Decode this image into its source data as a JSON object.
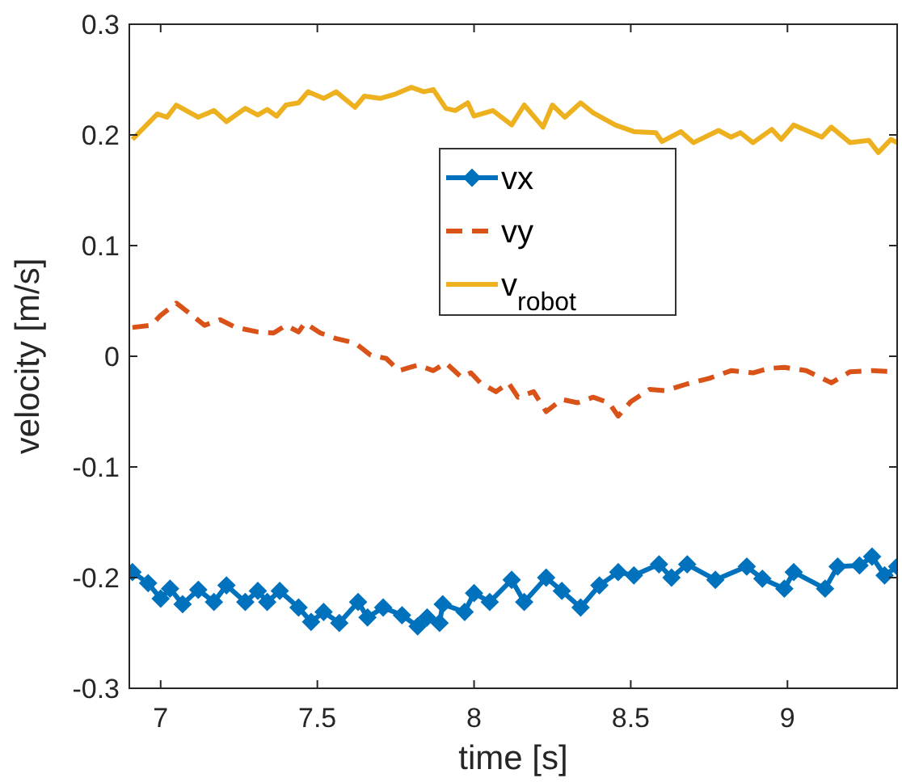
{
  "chart_data": {
    "type": "line",
    "xlabel": "time [s]",
    "ylabel": "velocity [m/s]",
    "xlim": [
      6.9,
      9.35
    ],
    "ylim": [
      -0.3,
      0.3
    ],
    "xticks": [
      7,
      7.5,
      8,
      8.5,
      9
    ],
    "yticks": [
      -0.3,
      -0.2,
      -0.1,
      0,
      0.1,
      0.2,
      0.3
    ],
    "grid": false,
    "legend": "top",
    "series": [
      {
        "name": "vx",
        "color": "#0072bd",
        "marker": "diamond",
        "line_style": "solid",
        "x": [
          6.91,
          6.96,
          7.0,
          7.03,
          7.07,
          7.12,
          7.17,
          7.21,
          7.27,
          7.31,
          7.34,
          7.38,
          7.44,
          7.48,
          7.52,
          7.57,
          7.63,
          7.66,
          7.71,
          7.77,
          7.82,
          7.85,
          7.89,
          7.9,
          7.97,
          8.0,
          8.05,
          8.12,
          8.16,
          8.23,
          8.28,
          8.34,
          8.4,
          8.46,
          8.51,
          8.59,
          8.63,
          8.68,
          8.77,
          8.87,
          8.92,
          8.99,
          9.02,
          9.12,
          9.16,
          9.23,
          9.27,
          9.31,
          9.35
        ],
        "values": [
          -0.195,
          -0.205,
          -0.219,
          -0.21,
          -0.224,
          -0.211,
          -0.222,
          -0.207,
          -0.222,
          -0.212,
          -0.222,
          -0.212,
          -0.227,
          -0.24,
          -0.231,
          -0.241,
          -0.222,
          -0.236,
          -0.227,
          -0.234,
          -0.244,
          -0.236,
          -0.241,
          -0.224,
          -0.231,
          -0.214,
          -0.222,
          -0.202,
          -0.222,
          -0.2,
          -0.212,
          -0.227,
          -0.207,
          -0.195,
          -0.198,
          -0.188,
          -0.2,
          -0.188,
          -0.202,
          -0.19,
          -0.201,
          -0.21,
          -0.195,
          -0.21,
          -0.19,
          -0.189,
          -0.181,
          -0.198,
          -0.19
        ]
      },
      {
        "name": "vy",
        "color": "#d95319",
        "marker": "none",
        "line_style": "dashed",
        "x": [
          6.91,
          6.97,
          7.0,
          7.05,
          7.1,
          7.14,
          7.19,
          7.24,
          7.31,
          7.36,
          7.4,
          7.44,
          7.46,
          7.51,
          7.56,
          7.62,
          7.67,
          7.72,
          7.76,
          7.82,
          7.87,
          7.91,
          7.96,
          7.99,
          8.02,
          8.07,
          8.11,
          8.14,
          8.19,
          8.23,
          8.28,
          8.33,
          8.38,
          8.43,
          8.46,
          8.5,
          8.56,
          8.61,
          8.68,
          8.75,
          8.82,
          8.89,
          8.94,
          8.99,
          9.06,
          9.14,
          9.2,
          9.27,
          9.35
        ],
        "values": [
          0.026,
          0.028,
          0.037,
          0.048,
          0.037,
          0.028,
          0.033,
          0.026,
          0.022,
          0.021,
          0.028,
          0.022,
          0.03,
          0.021,
          0.016,
          0.012,
          0.001,
          -0.002,
          -0.013,
          -0.008,
          -0.013,
          -0.006,
          -0.019,
          -0.015,
          -0.024,
          -0.032,
          -0.024,
          -0.037,
          -0.032,
          -0.05,
          -0.039,
          -0.042,
          -0.037,
          -0.042,
          -0.054,
          -0.041,
          -0.03,
          -0.031,
          -0.025,
          -0.02,
          -0.013,
          -0.015,
          -0.011,
          -0.01,
          -0.013,
          -0.024,
          -0.014,
          -0.013,
          -0.014
        ]
      },
      {
        "name": "v$_{robot}$",
        "color": "#edb120",
        "marker": "none",
        "line_style": "solid",
        "x": [
          6.91,
          6.99,
          7.02,
          7.05,
          7.12,
          7.17,
          7.21,
          7.27,
          7.31,
          7.34,
          7.37,
          7.4,
          7.44,
          7.47,
          7.52,
          7.56,
          7.62,
          7.65,
          7.7,
          7.75,
          7.8,
          7.84,
          7.87,
          7.91,
          7.94,
          7.98,
          8.0,
          8.06,
          8.12,
          8.16,
          8.22,
          8.25,
          8.29,
          8.34,
          8.38,
          8.45,
          8.51,
          8.58,
          8.6,
          8.66,
          8.7,
          8.78,
          8.82,
          8.85,
          8.89,
          8.95,
          8.98,
          9.02,
          9.11,
          9.14,
          9.2,
          9.26,
          9.29,
          9.33,
          9.35
        ],
        "values": [
          0.196,
          0.219,
          0.216,
          0.227,
          0.216,
          0.222,
          0.212,
          0.224,
          0.218,
          0.223,
          0.217,
          0.227,
          0.229,
          0.239,
          0.233,
          0.239,
          0.225,
          0.235,
          0.233,
          0.237,
          0.243,
          0.239,
          0.241,
          0.224,
          0.222,
          0.229,
          0.217,
          0.222,
          0.209,
          0.227,
          0.207,
          0.227,
          0.216,
          0.229,
          0.22,
          0.209,
          0.203,
          0.202,
          0.194,
          0.203,
          0.193,
          0.204,
          0.198,
          0.202,
          0.193,
          0.205,
          0.196,
          0.209,
          0.198,
          0.207,
          0.193,
          0.195,
          0.184,
          0.196,
          0.193
        ]
      }
    ]
  }
}
